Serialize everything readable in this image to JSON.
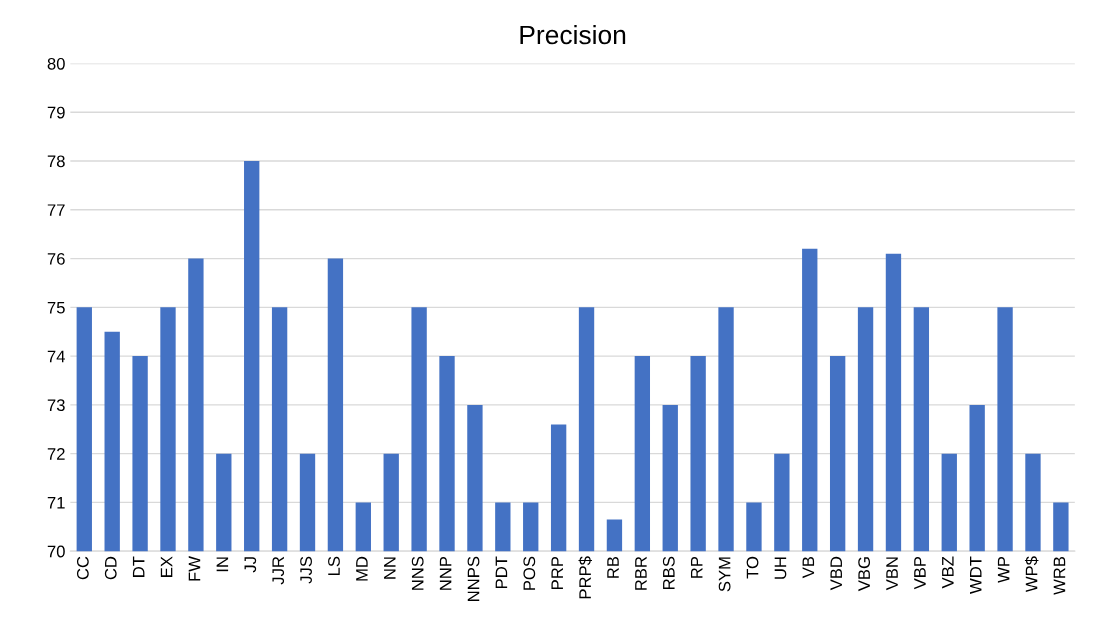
{
  "chart_data": {
    "type": "bar",
    "title": "Precision",
    "categories": [
      "CC",
      "CD",
      "DT",
      "EX",
      "FW",
      "IN",
      "JJ",
      "JJR",
      "JJS",
      "LS",
      "MD",
      "NN",
      "NNS",
      "NNP",
      "NNPS",
      "PDT",
      "POS",
      "PRP",
      "PRP$",
      "RB",
      "RBR",
      "RBS",
      "RP",
      "SYM",
      "TO",
      "UH",
      "VB",
      "VBD",
      "VBG",
      "VBN",
      "VBP",
      "VBZ",
      "WDT",
      "WP",
      "WP$",
      "WRB"
    ],
    "values": [
      75,
      74.5,
      74,
      75,
      76,
      72,
      78,
      75,
      72,
      76,
      71,
      72,
      75,
      74,
      73,
      71,
      71,
      72.6,
      75,
      70.65,
      74,
      73,
      74,
      75,
      71,
      72,
      76.2,
      74,
      75,
      76.1,
      75,
      72,
      73,
      75,
      72,
      71
    ],
    "color": "#4472c4",
    "ylim": [
      70,
      80
    ],
    "yticks": [
      70,
      71,
      72,
      73,
      74,
      75,
      76,
      77,
      78,
      79,
      80
    ],
    "grid": "y",
    "legend": false
  }
}
